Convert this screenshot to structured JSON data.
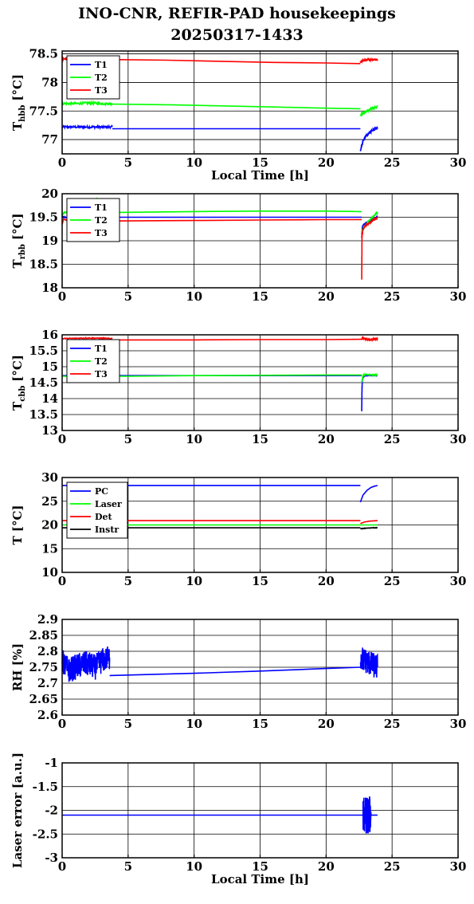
{
  "figure": {
    "title_line1": "INO-CNR, REFIR-PAD housekeepings",
    "title_line2": "20250317-1433"
  },
  "chart_data": [
    {
      "type": "line",
      "ylabel": "T",
      "ylabel_sub": "hbb",
      "ylabel_unit": "[°C]",
      "xlabel": "Local Time [h]",
      "xlim": [
        0,
        30
      ],
      "ylim": [
        76.75,
        78.55
      ],
      "xticks": [
        0,
        5,
        10,
        15,
        20,
        25,
        30
      ],
      "yticks": [
        77,
        77.5,
        78,
        78.5
      ],
      "grid": true,
      "legend_position": "top-left",
      "series": [
        {
          "name": "T1",
          "color": "#0000ff",
          "noise": 0.02,
          "segments": [
            {
              "x": [
                0.0,
                1.0,
                2.0,
                3.0,
                3.8
              ],
              "y": [
                77.22,
                77.22,
                77.22,
                77.22,
                77.22
              ],
              "noisy": true
            },
            {
              "x": [
                3.8,
                10,
                15,
                20,
                22.6
              ],
              "y": [
                77.19,
                77.19,
                77.19,
                77.19,
                77.19
              ]
            },
            {
              "x": [
                22.6,
                22.8,
                23.0,
                23.3,
                23.6,
                23.9
              ],
              "y": [
                76.8,
                76.98,
                77.06,
                77.12,
                77.17,
                77.21
              ],
              "noisy": true
            }
          ]
        },
        {
          "name": "T2",
          "color": "#00ff00",
          "noise": 0.02,
          "segments": [
            {
              "x": [
                0.0,
                1.0,
                2.0,
                3.0,
                3.8
              ],
              "y": [
                77.63,
                77.63,
                77.64,
                77.63,
                77.63
              ],
              "noisy": true
            },
            {
              "x": [
                3.8,
                8,
                12,
                16,
                20,
                22.6
              ],
              "y": [
                77.62,
                77.61,
                77.59,
                77.57,
                77.55,
                77.54
              ]
            },
            {
              "x": [
                22.6,
                22.9,
                23.2,
                23.5,
                23.9
              ],
              "y": [
                77.43,
                77.47,
                77.51,
                77.55,
                77.58
              ],
              "noisy": true
            }
          ]
        },
        {
          "name": "T3",
          "color": "#ff0000",
          "noise": 0.02,
          "segments": [
            {
              "x": [
                0.0,
                1.0,
                2.0,
                3.0,
                3.8
              ],
              "y": [
                78.41,
                78.42,
                78.42,
                78.41,
                78.41
              ],
              "noisy": true
            },
            {
              "x": [
                3.8,
                8,
                12,
                16,
                20,
                22.6
              ],
              "y": [
                78.4,
                78.39,
                78.37,
                78.35,
                78.34,
                78.33
              ]
            },
            {
              "x": [
                22.6,
                22.9,
                23.2,
                23.5,
                23.9
              ],
              "y": [
                78.36,
                78.39,
                78.4,
                78.4,
                78.4
              ],
              "noisy": true
            }
          ]
        }
      ]
    },
    {
      "type": "line",
      "ylabel": "T",
      "ylabel_sub": "rbb",
      "ylabel_unit": "[°C]",
      "xlabel": "",
      "xlim": [
        0,
        30
      ],
      "ylim": [
        18,
        20
      ],
      "xticks": [
        0,
        5,
        10,
        15,
        20,
        25,
        30
      ],
      "yticks": [
        18,
        18.5,
        19,
        19.5,
        20
      ],
      "grid": true,
      "legend_position": "top-left",
      "series": [
        {
          "name": "T1",
          "color": "#0000ff",
          "noise": 0.01,
          "segments": [
            {
              "x": [
                0.0,
                0.2,
                1.0,
                2.0,
                3.0,
                3.8
              ],
              "y": [
                19.5,
                19.5,
                19.5,
                19.5,
                19.5,
                19.5
              ],
              "noisy": true
            },
            {
              "x": [
                3.8,
                10,
                15,
                20,
                22.7
              ],
              "y": [
                19.5,
                19.5,
                19.5,
                19.5,
                19.5
              ]
            },
            {
              "x": [
                22.7,
                22.75,
                22.9,
                23.2,
                23.5,
                23.9
              ],
              "y": [
                19.05,
                19.3,
                19.35,
                19.4,
                19.45,
                19.5
              ],
              "noisy": true
            }
          ]
        },
        {
          "name": "T2",
          "color": "#00ff00",
          "noise": 0.01,
          "segments": [
            {
              "x": [
                0.0,
                0.2,
                1.0,
                2.0,
                2.6,
                3.0,
                3.8
              ],
              "y": [
                19.55,
                19.6,
                19.6,
                19.65,
                19.9,
                19.62,
                19.6
              ],
              "noisy": true
            },
            {
              "x": [
                3.8,
                10,
                15,
                20,
                22.7
              ],
              "y": [
                19.6,
                19.62,
                19.63,
                19.63,
                19.62
              ]
            },
            {
              "x": [
                22.7,
                22.9,
                23.2,
                23.5,
                23.9
              ],
              "y": [
                19.2,
                19.3,
                19.4,
                19.5,
                19.6
              ],
              "noisy": true
            }
          ]
        },
        {
          "name": "T3",
          "color": "#ff0000",
          "noise": 0.01,
          "segments": [
            {
              "x": [
                0.0,
                0.1,
                1.0,
                2.0,
                3.0,
                3.8
              ],
              "y": [
                19.35,
                19.45,
                19.42,
                19.42,
                19.42,
                19.42
              ],
              "noisy": true
            },
            {
              "x": [
                3.8,
                10,
                15,
                20,
                22.7
              ],
              "y": [
                19.42,
                19.43,
                19.44,
                19.45,
                19.45
              ]
            },
            {
              "x": [
                22.7,
                22.72,
                22.8,
                23.0,
                23.3,
                23.6,
                23.9
              ],
              "y": [
                18.18,
                19.1,
                19.25,
                19.32,
                19.38,
                19.44,
                19.5
              ],
              "noisy": true
            }
          ]
        }
      ]
    },
    {
      "type": "line",
      "ylabel": "T",
      "ylabel_sub": "cbb",
      "ylabel_unit": "[°C]",
      "xlabel": "",
      "xlim": [
        0,
        30
      ],
      "ylim": [
        13,
        16
      ],
      "xticks": [
        0,
        5,
        10,
        15,
        20,
        25,
        30
      ],
      "yticks": [
        13,
        13.5,
        14,
        14.5,
        15,
        15.5,
        16
      ],
      "grid": true,
      "legend_position": "top-left",
      "series": [
        {
          "name": "T1",
          "color": "#0000ff",
          "noise": 0.01,
          "segments": [
            {
              "x": [
                0.0,
                2.0,
                3.8,
                10,
                15,
                20,
                22.7
              ],
              "y": [
                14.72,
                14.72,
                14.72,
                14.72,
                14.72,
                14.72,
                14.72
              ]
            },
            {
              "x": [
                22.7,
                22.72,
                22.75,
                22.8,
                23.0,
                23.9
              ],
              "y": [
                13.6,
                14.3,
                14.6,
                14.7,
                14.72,
                14.72
              ],
              "noisy": true
            }
          ]
        },
        {
          "name": "T2",
          "color": "#00ff00",
          "noise": 0.01,
          "segments": [
            {
              "x": [
                0.0,
                5,
                10,
                15,
                20,
                22.7
              ],
              "y": [
                14.7,
                14.7,
                14.72,
                14.73,
                14.74,
                14.74
              ]
            },
            {
              "x": [
                22.7,
                22.8,
                23.0,
                23.5,
                23.9
              ],
              "y": [
                14.5,
                14.72,
                14.76,
                14.74,
                14.74
              ],
              "noisy": true
            }
          ]
        },
        {
          "name": "T3",
          "color": "#ff0000",
          "noise": 0.015,
          "segments": [
            {
              "x": [
                0.0,
                1.0,
                2.0,
                3.0,
                3.8
              ],
              "y": [
                15.88,
                15.89,
                15.9,
                15.89,
                15.88
              ],
              "noisy": true
            },
            {
              "x": [
                3.8,
                10,
                15,
                20,
                22.7
              ],
              "y": [
                15.84,
                15.84,
                15.85,
                15.85,
                15.86
              ]
            },
            {
              "x": [
                22.7,
                23.0,
                23.3,
                23.6,
                23.9
              ],
              "y": [
                15.9,
                15.86,
                15.84,
                15.86,
                15.87
              ],
              "noisy": true
            }
          ]
        }
      ]
    },
    {
      "type": "line",
      "ylabel": "T [°C]",
      "ylabel_sub": "",
      "ylabel_unit": "",
      "xlabel": "",
      "xlim": [
        0,
        30
      ],
      "ylim": [
        10,
        30
      ],
      "xticks": [
        0,
        5,
        10,
        15,
        20,
        25,
        30
      ],
      "yticks": [
        10,
        15,
        20,
        25,
        30
      ],
      "grid": true,
      "legend_position": "top-left",
      "series": [
        {
          "name": "PC",
          "color": "#0000ff",
          "noise": 0,
          "segments": [
            {
              "x": [
                0.0,
                5,
                10,
                15,
                20,
                22.6
              ],
              "y": [
                28.3,
                28.3,
                28.3,
                28.3,
                28.3,
                28.3
              ]
            },
            {
              "x": [
                22.6,
                22.8,
                23.1,
                23.4,
                23.7,
                23.9
              ],
              "y": [
                24.8,
                26.3,
                27.3,
                27.9,
                28.2,
                28.3
              ]
            }
          ]
        },
        {
          "name": "Laser",
          "color": "#00ff00",
          "noise": 0,
          "segments": [
            {
              "x": [
                0.0,
                5,
                10,
                15,
                20,
                22.6,
                23.0,
                23.9
              ],
              "y": [
                20.0,
                20.0,
                20.0,
                20.0,
                20.0,
                20.0,
                20.0,
                20.0
              ]
            }
          ]
        },
        {
          "name": "Det",
          "color": "#ff0000",
          "noise": 0,
          "segments": [
            {
              "x": [
                0.0,
                5,
                10,
                15,
                20,
                22.6
              ],
              "y": [
                20.9,
                20.9,
                20.9,
                20.9,
                20.9,
                20.9
              ]
            },
            {
              "x": [
                22.6,
                22.9,
                23.3,
                23.9
              ],
              "y": [
                20.3,
                20.6,
                20.8,
                20.9
              ]
            }
          ]
        },
        {
          "name": "Instr",
          "color": "#000000",
          "noise": 0.03,
          "segments": [
            {
              "x": [
                0.0,
                5,
                10,
                15,
                20,
                22.6
              ],
              "y": [
                19.4,
                19.4,
                19.4,
                19.4,
                19.4,
                19.4
              ]
            },
            {
              "x": [
                22.6,
                23.0,
                23.5,
                23.9
              ],
              "y": [
                19.2,
                19.3,
                19.4,
                19.4
              ],
              "noisy": true
            }
          ]
        }
      ]
    },
    {
      "type": "line",
      "ylabel": "RH [%]",
      "ylabel_sub": "",
      "ylabel_unit": "",
      "xlabel": "",
      "xlim": [
        0,
        30
      ],
      "ylim": [
        2.6,
        2.9
      ],
      "xticks": [
        0,
        5,
        10,
        15,
        20,
        25,
        30
      ],
      "yticks": [
        2.6,
        2.65,
        2.7,
        2.75,
        2.8,
        2.85,
        2.9
      ],
      "grid": true,
      "legend_position": "none",
      "series": [
        {
          "name": "",
          "color": "#0000ff",
          "noise": 0.04,
          "segments": [
            {
              "x": [
                0.0,
                0.5,
                1.0,
                1.5,
                2.0,
                2.5,
                3.0,
                3.6
              ],
              "y": [
                2.77,
                2.74,
                2.75,
                2.76,
                2.76,
                2.75,
                2.77,
                2.78
              ],
              "noisy": true
            },
            {
              "x": [
                3.6,
                10,
                15,
                20,
                22.6
              ],
              "y": [
                2.724,
                2.731,
                2.738,
                2.746,
                2.75
              ]
            },
            {
              "x": [
                22.6,
                23.0,
                23.4,
                23.9
              ],
              "y": [
                2.78,
                2.77,
                2.76,
                2.75
              ],
              "noisy": true
            }
          ]
        }
      ]
    },
    {
      "type": "line",
      "ylabel": "Laser error [a.u.]",
      "ylabel_sub": "",
      "ylabel_unit": "",
      "xlabel": "Local Time [h]",
      "xlim": [
        0,
        30
      ],
      "ylim": [
        -3,
        -1
      ],
      "xticks": [
        0,
        5,
        10,
        15,
        20,
        25,
        30
      ],
      "yticks": [
        -3,
        -2.5,
        -2,
        -1.5,
        -1
      ],
      "grid": true,
      "legend_position": "none",
      "series": [
        {
          "name": "",
          "color": "#0000ff",
          "noise": 0,
          "segments": [
            {
              "x": [
                0.0,
                3.8,
                10,
                15,
                20,
                22.8
              ],
              "y": [
                -2.1,
                -2.1,
                -2.1,
                -2.1,
                -2.1,
                -2.1
              ]
            },
            {
              "x": [
                22.8,
                23.0,
                23.2,
                23.4
              ],
              "y": [
                -2.1,
                -2.1,
                -2.1,
                -2.1
              ],
              "noisy": true,
              "burst": 0.4
            },
            {
              "x": [
                23.4,
                23.9
              ],
              "y": [
                -2.1,
                -2.1
              ]
            }
          ]
        }
      ]
    }
  ]
}
